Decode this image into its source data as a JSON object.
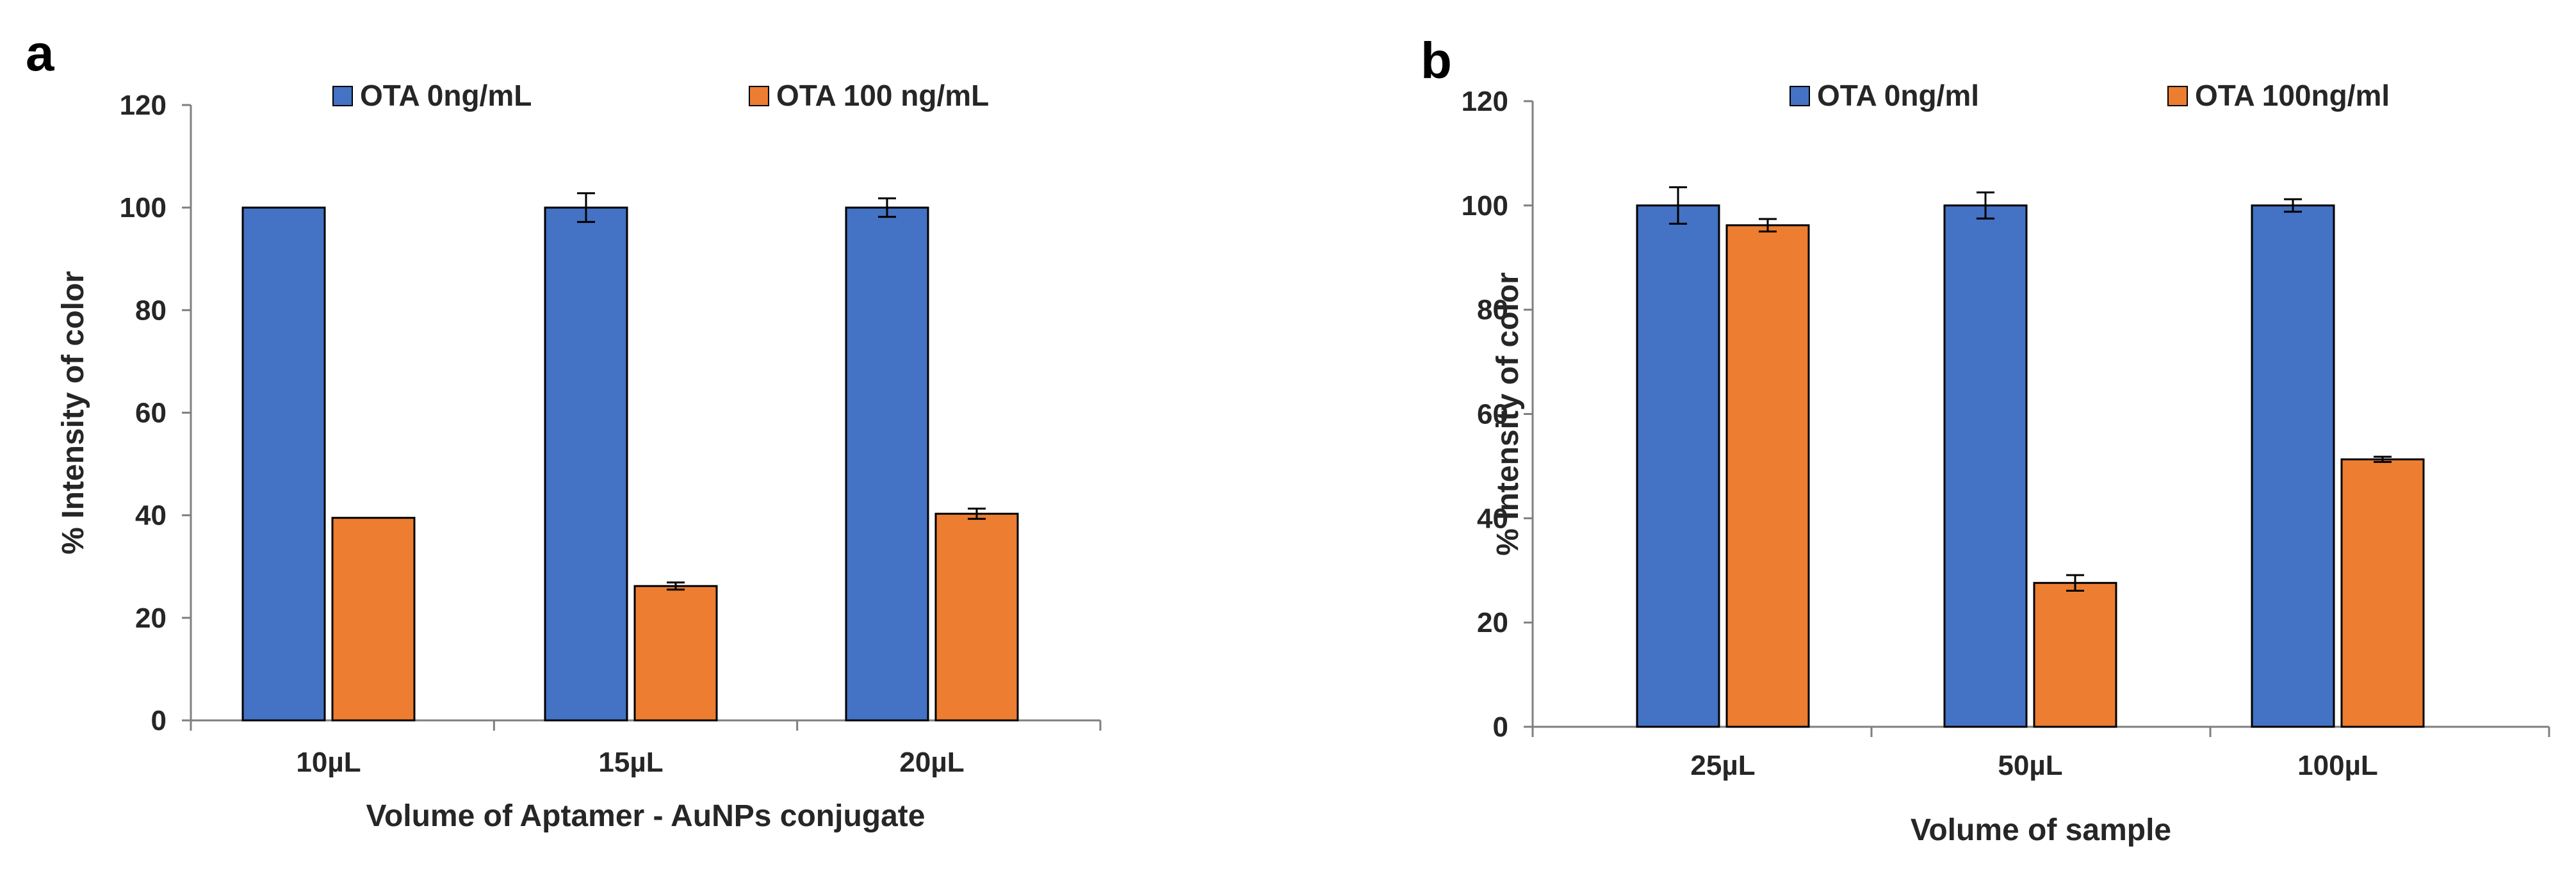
{
  "chart_data": [
    {
      "panel_label": "a",
      "type": "bar",
      "title": "",
      "xlabel": "Volume of Aptamer - AuNPs  conjugate",
      "ylabel": "% Intensity of color",
      "ylim": [
        0,
        120
      ],
      "yticks": [
        "0",
        "20",
        "40",
        "60",
        "80",
        "100",
        "120"
      ],
      "grid": false,
      "legend_position": "top",
      "categories": [
        "10µL",
        "15µL",
        "20µL"
      ],
      "series": [
        {
          "name": "OTA 0ng/mL",
          "color": "#4472C4",
          "values": [
            100,
            100,
            100
          ],
          "errors": [
            0,
            2.8,
            1.8
          ]
        },
        {
          "name": "OTA 100 ng/mL",
          "color": "#ED7D31",
          "values": [
            39.5,
            26.2,
            40.3
          ],
          "errors": [
            0,
            0.7,
            1.0
          ]
        }
      ]
    },
    {
      "panel_label": "b",
      "type": "bar",
      "title": "",
      "xlabel": "Volume of sample",
      "ylabel": "% Intensity of color",
      "ylim": [
        0,
        120
      ],
      "yticks": [
        "0",
        "20",
        "40",
        "60",
        "80",
        "100",
        "120"
      ],
      "grid": false,
      "legend_position": "top",
      "categories": [
        "25µL",
        "50µL",
        "100µL"
      ],
      "series": [
        {
          "name": "OTA  0ng/ml",
          "color": "#4472C4",
          "values": [
            100,
            100,
            100
          ],
          "errors": [
            3.5,
            2.5,
            1.2
          ]
        },
        {
          "name": "OTA 100ng/ml",
          "color": "#ED7D31",
          "values": [
            96.2,
            27.6,
            51.3
          ],
          "errors": [
            1.2,
            1.5,
            0.5
          ]
        }
      ]
    }
  ]
}
